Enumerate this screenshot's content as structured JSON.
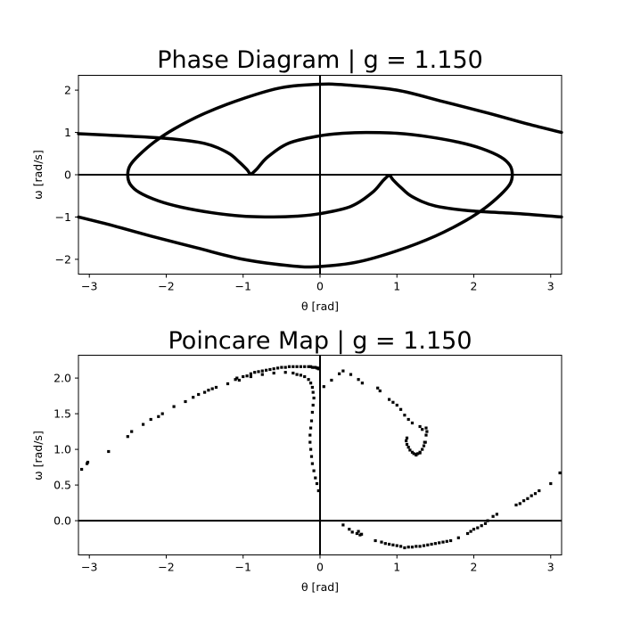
{
  "chart_data": [
    {
      "type": "line",
      "title": "Phase Diagram | g = 1.150",
      "xlabel": "θ [rad]",
      "ylabel": "ω [rad/s]",
      "xlim": [
        -3.14159,
        3.14159
      ],
      "ylim": [
        -2.35,
        2.35
      ],
      "xticks": [
        -3,
        -2,
        -1,
        0,
        1,
        2,
        3
      ],
      "yticks": [
        -2,
        -1,
        0,
        1,
        2
      ],
      "xtick_labels": [
        "−3",
        "−2",
        "−1",
        "0",
        "1",
        "2",
        "3"
      ],
      "ytick_labels": [
        "−2",
        "−1",
        "0",
        "1",
        "2"
      ],
      "grid": false,
      "reference_lines": [
        "x=0",
        "y=0"
      ],
      "series": [
        {
          "values": [
            [
              -3.14,
              0.97
            ],
            [
              -2.6,
              0.92
            ],
            [
              -2.0,
              0.86
            ],
            [
              -1.5,
              0.74
            ],
            [
              -1.2,
              0.52
            ],
            [
              -1.05,
              0.3
            ],
            [
              -0.95,
              0.12
            ],
            [
              -0.9,
              0.02
            ],
            [
              -0.82,
              0.14
            ],
            [
              -0.68,
              0.42
            ],
            [
              -0.4,
              0.75
            ],
            [
              0.0,
              0.92
            ],
            [
              0.3,
              0.98
            ],
            [
              0.6,
              1.0
            ],
            [
              1.0,
              0.98
            ],
            [
              1.4,
              0.9
            ],
            [
              1.8,
              0.77
            ],
            [
              2.1,
              0.62
            ],
            [
              2.35,
              0.42
            ],
            [
              2.47,
              0.22
            ],
            [
              2.5,
              0.0
            ],
            [
              2.47,
              -0.22
            ],
            [
              2.35,
              -0.47
            ],
            [
              2.15,
              -0.78
            ],
            [
              1.9,
              -1.08
            ],
            [
              1.5,
              -1.45
            ],
            [
              1.0,
              -1.8
            ],
            [
              0.5,
              -2.06
            ],
            [
              0.0,
              -2.17
            ],
            [
              -0.35,
              -2.16
            ],
            [
              -1.0,
              -2.0
            ],
            [
              -1.6,
              -1.73
            ],
            [
              -2.2,
              -1.45
            ],
            [
              -2.7,
              -1.2
            ],
            [
              -3.14,
              -1.0
            ]
          ]
        },
        {
          "values": [
            [
              3.14,
              -1.0
            ],
            [
              2.6,
              -0.92
            ],
            [
              2.0,
              -0.86
            ],
            [
              1.5,
              -0.74
            ],
            [
              1.2,
              -0.52
            ],
            [
              1.05,
              -0.3
            ],
            [
              0.95,
              -0.12
            ],
            [
              0.9,
              -0.02
            ],
            [
              0.82,
              -0.14
            ],
            [
              0.68,
              -0.42
            ],
            [
              0.4,
              -0.75
            ],
            [
              0.0,
              -0.92
            ],
            [
              -0.3,
              -0.98
            ],
            [
              -0.6,
              -1.0
            ],
            [
              -1.0,
              -0.98
            ],
            [
              -1.4,
              -0.9
            ],
            [
              -1.8,
              -0.77
            ],
            [
              -2.1,
              -0.62
            ],
            [
              -2.35,
              -0.42
            ],
            [
              -2.47,
              -0.22
            ],
            [
              -2.5,
              0.0
            ],
            [
              -2.47,
              0.22
            ],
            [
              -2.35,
              0.47
            ],
            [
              -2.15,
              0.78
            ],
            [
              -1.9,
              1.08
            ],
            [
              -1.5,
              1.45
            ],
            [
              -1.0,
              1.8
            ],
            [
              -0.5,
              2.06
            ],
            [
              0.0,
              2.14
            ],
            [
              0.35,
              2.12
            ],
            [
              1.0,
              2.0
            ],
            [
              1.6,
              1.73
            ],
            [
              2.2,
              1.45
            ],
            [
              2.7,
              1.2
            ],
            [
              3.14,
              1.0
            ]
          ]
        }
      ]
    },
    {
      "type": "scatter",
      "title": "Poincare Map | g = 1.150",
      "xlabel": "θ [rad]",
      "ylabel": "ω [rad/s]",
      "xlim": [
        -3.14159,
        3.14159
      ],
      "ylim": [
        -0.48,
        2.32
      ],
      "xticks": [
        -3,
        -2,
        -1,
        0,
        1,
        2,
        3
      ],
      "yticks": [
        0.0,
        0.5,
        1.0,
        1.5,
        2.0
      ],
      "xtick_labels": [
        "−3",
        "−2",
        "−1",
        "0",
        "1",
        "2",
        "3"
      ],
      "ytick_labels": [
        "0.0",
        "0.5",
        "1.0",
        "1.5",
        "2.0"
      ],
      "grid": false,
      "reference_lines": [
        "x=0",
        "y=0"
      ],
      "points": [
        [
          -3.1,
          0.72
        ],
        [
          -3.03,
          0.8
        ],
        [
          -3.02,
          0.82
        ],
        [
          -2.75,
          0.97
        ],
        [
          -2.5,
          1.18
        ],
        [
          -2.45,
          1.25
        ],
        [
          -2.3,
          1.35
        ],
        [
          -2.2,
          1.42
        ],
        [
          -2.1,
          1.46
        ],
        [
          -2.05,
          1.5
        ],
        [
          -1.9,
          1.6
        ],
        [
          -1.75,
          1.67
        ],
        [
          -1.65,
          1.73
        ],
        [
          -1.58,
          1.77
        ],
        [
          -1.5,
          1.8
        ],
        [
          -1.45,
          1.83
        ],
        [
          -1.4,
          1.85
        ],
        [
          -1.35,
          1.87
        ],
        [
          -1.2,
          1.92
        ],
        [
          -1.1,
          1.98
        ],
        [
          -1.08,
          2.0
        ],
        [
          -1.05,
          1.97
        ],
        [
          -1.0,
          2.02
        ],
        [
          -0.95,
          2.03
        ],
        [
          -0.9,
          2.06
        ],
        [
          -0.85,
          2.08
        ],
        [
          -0.8,
          2.09
        ],
        [
          -0.75,
          2.1
        ],
        [
          -0.7,
          2.11
        ],
        [
          -0.65,
          2.12
        ],
        [
          -0.6,
          2.13
        ],
        [
          -0.55,
          2.14
        ],
        [
          -0.5,
          2.15
        ],
        [
          -0.45,
          2.15
        ],
        [
          -0.4,
          2.16
        ],
        [
          -0.35,
          2.16
        ],
        [
          -0.3,
          2.16
        ],
        [
          -0.25,
          2.16
        ],
        [
          -0.2,
          2.16
        ],
        [
          -0.15,
          2.16
        ],
        [
          -0.12,
          2.16
        ],
        [
          -0.1,
          2.15
        ],
        [
          -0.08,
          2.15
        ],
        [
          -0.06,
          2.15
        ],
        [
          -0.04,
          2.14
        ],
        [
          -0.03,
          2.14
        ],
        [
          -0.02,
          2.13
        ],
        [
          -0.01,
          2.13
        ],
        [
          -0.9,
          2.02
        ],
        [
          -0.75,
          2.05
        ],
        [
          -0.6,
          2.07
        ],
        [
          -0.45,
          2.08
        ],
        [
          -0.35,
          2.07
        ],
        [
          -0.3,
          2.05
        ],
        [
          -0.25,
          2.04
        ],
        [
          -0.2,
          2.02
        ],
        [
          -0.15,
          1.98
        ],
        [
          -0.12,
          1.93
        ],
        [
          -0.1,
          1.87
        ],
        [
          -0.09,
          1.8
        ],
        [
          -0.08,
          1.72
        ],
        [
          -0.09,
          1.62
        ],
        [
          -0.1,
          1.52
        ],
        [
          -0.11,
          1.4
        ],
        [
          -0.12,
          1.3
        ],
        [
          -0.13,
          1.2
        ],
        [
          -0.13,
          1.1
        ],
        [
          -0.12,
          1.0
        ],
        [
          -0.11,
          0.9
        ],
        [
          -0.1,
          0.8
        ],
        [
          -0.08,
          0.7
        ],
        [
          -0.06,
          0.6
        ],
        [
          -0.04,
          0.52
        ],
        [
          -0.02,
          0.42
        ],
        [
          0.05,
          1.88
        ],
        [
          0.15,
          1.97
        ],
        [
          0.25,
          2.06
        ],
        [
          0.3,
          2.1
        ],
        [
          0.4,
          2.05
        ],
        [
          0.5,
          1.98
        ],
        [
          0.55,
          1.93
        ],
        [
          0.75,
          1.86
        ],
        [
          0.78,
          1.82
        ],
        [
          0.9,
          1.7
        ],
        [
          0.95,
          1.66
        ],
        [
          1.0,
          1.62
        ],
        [
          1.05,
          1.56
        ],
        [
          1.1,
          1.48
        ],
        [
          1.15,
          1.42
        ],
        [
          1.2,
          1.37
        ],
        [
          1.3,
          1.32
        ],
        [
          1.33,
          1.28
        ],
        [
          1.38,
          1.3
        ],
        [
          1.39,
          1.25
        ],
        [
          1.38,
          1.2
        ],
        [
          1.37,
          1.1
        ],
        [
          1.35,
          1.05
        ],
        [
          1.33,
          1.0
        ],
        [
          1.3,
          0.96
        ],
        [
          1.27,
          0.94
        ],
        [
          1.25,
          0.93
        ],
        [
          1.22,
          0.94
        ],
        [
          1.2,
          0.96
        ],
        [
          1.17,
          0.99
        ],
        [
          1.15,
          1.03
        ],
        [
          1.13,
          1.07
        ],
        [
          1.12,
          1.12
        ],
        [
          1.13,
          1.16
        ],
        [
          1.3,
          0.95
        ],
        [
          1.36,
          1.1
        ],
        [
          1.25,
          0.92
        ],
        [
          0.3,
          -0.06
        ],
        [
          0.38,
          -0.12
        ],
        [
          0.42,
          -0.16
        ],
        [
          0.48,
          -0.18
        ],
        [
          0.5,
          -0.15
        ],
        [
          0.52,
          -0.2
        ],
        [
          0.54,
          -0.19
        ],
        [
          0.72,
          -0.28
        ],
        [
          0.8,
          -0.3
        ],
        [
          0.85,
          -0.32
        ],
        [
          0.9,
          -0.33
        ],
        [
          0.95,
          -0.34
        ],
        [
          1.0,
          -0.35
        ],
        [
          1.05,
          -0.36
        ],
        [
          1.1,
          -0.38
        ],
        [
          1.15,
          -0.37
        ],
        [
          1.2,
          -0.37
        ],
        [
          1.25,
          -0.36
        ],
        [
          1.3,
          -0.36
        ],
        [
          1.35,
          -0.35
        ],
        [
          1.4,
          -0.34
        ],
        [
          1.45,
          -0.33
        ],
        [
          1.5,
          -0.32
        ],
        [
          1.55,
          -0.31
        ],
        [
          1.6,
          -0.3
        ],
        [
          1.65,
          -0.29
        ],
        [
          1.7,
          -0.28
        ],
        [
          1.8,
          -0.24
        ],
        [
          1.92,
          -0.18
        ],
        [
          1.96,
          -0.15
        ],
        [
          2.0,
          -0.12
        ],
        [
          2.05,
          -0.1
        ],
        [
          2.1,
          -0.07
        ],
        [
          2.15,
          -0.04
        ],
        [
          2.18,
          0.0
        ],
        [
          2.25,
          0.06
        ],
        [
          2.3,
          0.09
        ],
        [
          2.55,
          0.22
        ],
        [
          2.6,
          0.24
        ],
        [
          2.65,
          0.28
        ],
        [
          2.7,
          0.31
        ],
        [
          2.75,
          0.35
        ],
        [
          2.8,
          0.38
        ],
        [
          2.85,
          0.42
        ],
        [
          3.0,
          0.52
        ],
        [
          3.12,
          0.67
        ]
      ]
    }
  ]
}
